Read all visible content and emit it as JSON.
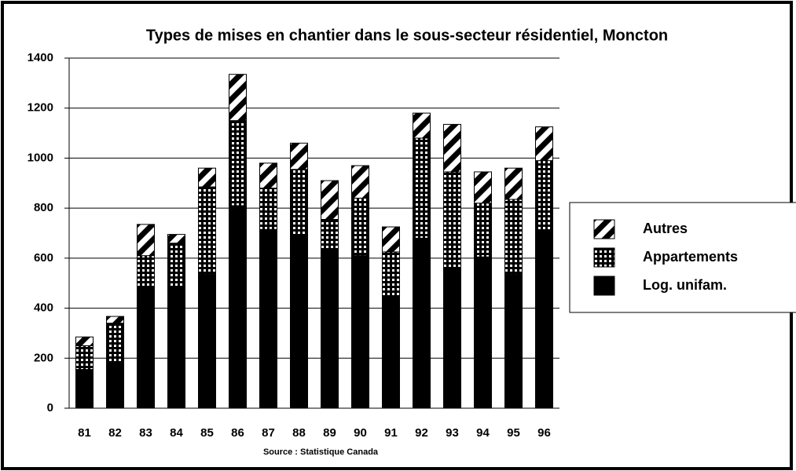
{
  "chart_data": {
    "type": "stacked_bar",
    "title": "Types de mises en chantier dans le sous-secteur résidentiel, Moncton",
    "source": "Source : Statistique Canada",
    "categories": [
      "81",
      "82",
      "83",
      "84",
      "85",
      "86",
      "87",
      "88",
      "89",
      "90",
      "91",
      "92",
      "93",
      "94",
      "95",
      "96"
    ],
    "series": [
      {
        "name": "Log. unifam.",
        "color": "#000000",
        "pattern": "solid",
        "values": [
          155,
          185,
          485,
          485,
          535,
          810,
          715,
          690,
          630,
          610,
          450,
          680,
          555,
          605,
          535,
          710
        ]
      },
      {
        "name": "Appartements",
        "color": "#000000",
        "pattern": "grid",
        "values": [
          95,
          155,
          125,
          175,
          350,
          340,
          165,
          265,
          125,
          230,
          175,
          400,
          390,
          215,
          300,
          280
        ]
      },
      {
        "name": "Autres",
        "color": "#000000",
        "pattern": "diagonal",
        "values": [
          35,
          27,
          125,
          35,
          75,
          185,
          100,
          105,
          155,
          130,
          100,
          100,
          190,
          125,
          125,
          135
        ]
      }
    ],
    "ylim": [
      0,
      1400
    ],
    "yticks": [
      0,
      200,
      400,
      600,
      800,
      1000,
      1200,
      1400
    ],
    "grid": true,
    "legend": "right"
  }
}
